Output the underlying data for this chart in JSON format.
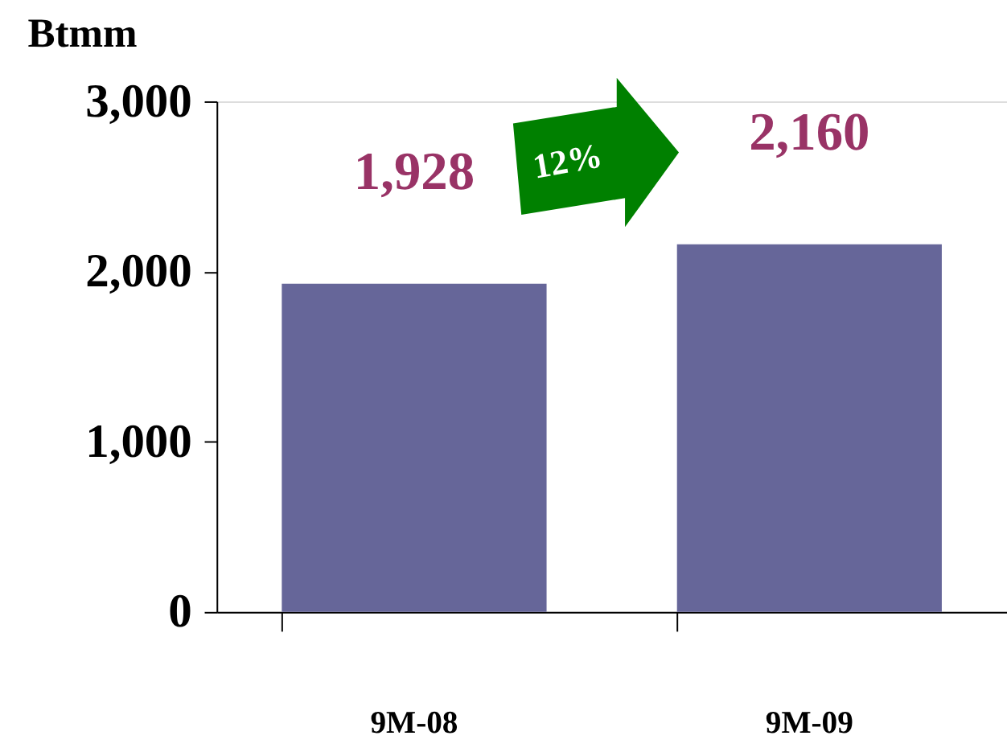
{
  "chart_data": {
    "type": "bar",
    "ylabel": "Btmm",
    "categories": [
      "9M-08",
      "9M-09"
    ],
    "values": [
      1928,
      2160
    ],
    "color": "#666699",
    "value_labels": [
      "1,928",
      "2,160"
    ],
    "ylim": [
      0,
      3000
    ],
    "yticks": [
      0,
      {
        "value": 1000,
        "label": "1,000"
      },
      {
        "value": 2000,
        "label": "2,000"
      },
      {
        "value": 3000,
        "label": "3,000"
      }
    ],
    "grid": false,
    "annotations": [
      "12%"
    ]
  }
}
